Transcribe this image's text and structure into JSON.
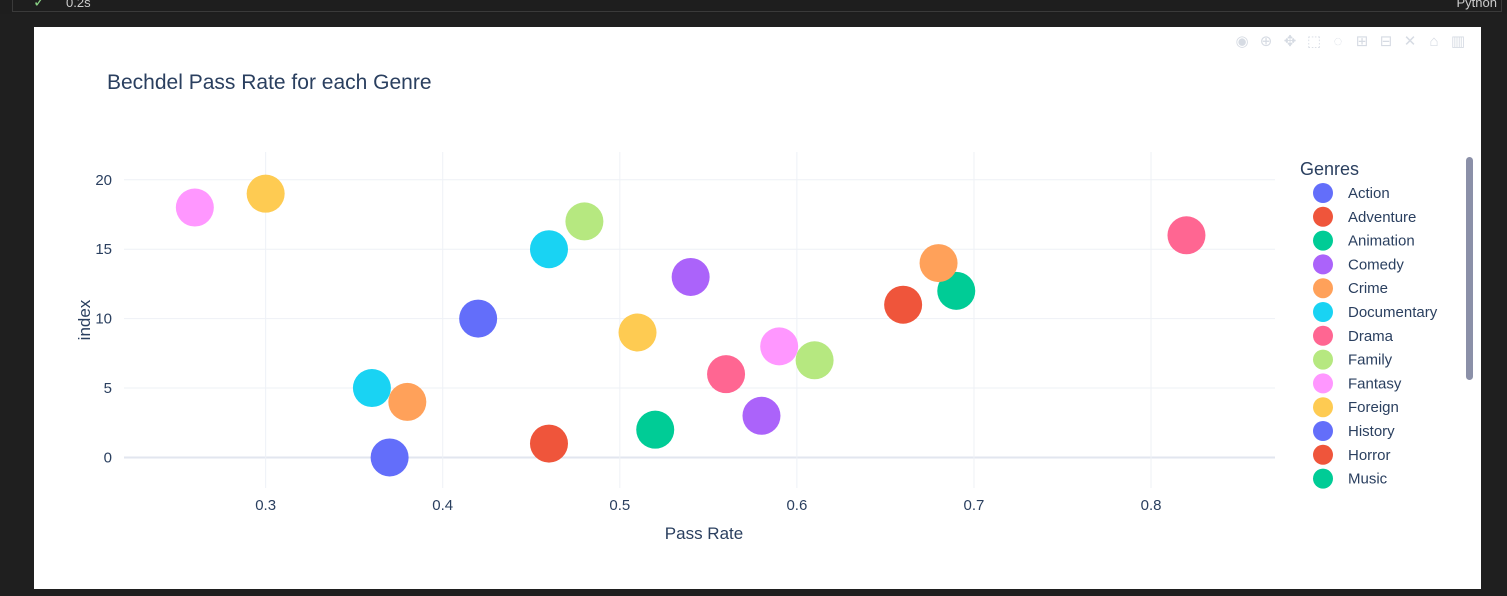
{
  "toolbar": {
    "exec_time": "0.2s",
    "language": "Python"
  },
  "modebar_icons": [
    "camera-icon",
    "zoom-icon",
    "pan-icon",
    "box-select-icon",
    "lasso-icon",
    "zoom-in-icon",
    "zoom-out-icon",
    "autoscale-icon",
    "reset-icon",
    "plotly-logo-icon"
  ],
  "chart_data": {
    "type": "scatter",
    "title": "Bechdel Pass Rate for each Genre",
    "xlabel": "Pass Rate",
    "ylabel": "index",
    "xlim": [
      0.22,
      0.87
    ],
    "ylim": [
      -2.2,
      22
    ],
    "xticks": [
      0.3,
      0.4,
      0.5,
      0.6,
      0.7,
      0.8
    ],
    "yticks": [
      0,
      5,
      10,
      15,
      20
    ],
    "grid": true,
    "legend_title": "Genres",
    "legend_position": "right",
    "series": [
      {
        "name": "Action",
        "color": "#636efa",
        "points": [
          [
            0.37,
            0
          ]
        ]
      },
      {
        "name": "Adventure",
        "color": "#EF553B",
        "points": [
          [
            0.46,
            1
          ]
        ]
      },
      {
        "name": "Animation",
        "color": "#00cc96",
        "points": [
          [
            0.52,
            2
          ]
        ]
      },
      {
        "name": "Comedy",
        "color": "#ab63fa",
        "points": [
          [
            0.58,
            3
          ]
        ]
      },
      {
        "name": "Crime",
        "color": "#FFA15A",
        "points": [
          [
            0.38,
            4
          ]
        ]
      },
      {
        "name": "Documentary",
        "color": "#19d3f3",
        "points": [
          [
            0.36,
            5
          ]
        ]
      },
      {
        "name": "Drama",
        "color": "#FF6692",
        "points": [
          [
            0.56,
            6
          ]
        ]
      },
      {
        "name": "Family",
        "color": "#B6E880",
        "points": [
          [
            0.61,
            7
          ]
        ]
      },
      {
        "name": "Fantasy",
        "color": "#FF97FF",
        "points": [
          [
            0.59,
            8
          ]
        ]
      },
      {
        "name": "Foreign",
        "color": "#FECB52",
        "points": [
          [
            0.51,
            9
          ]
        ]
      },
      {
        "name": "History",
        "color": "#636efa",
        "points": [
          [
            0.42,
            10
          ]
        ]
      },
      {
        "name": "Horror",
        "color": "#EF553B",
        "points": [
          [
            0.66,
            11
          ]
        ]
      },
      {
        "name": "Music",
        "color": "#00cc96",
        "points": [
          [
            0.69,
            12
          ]
        ]
      }
    ],
    "unlisted_points": [
      {
        "color": "#ab63fa",
        "x": 0.54,
        "y": 13
      },
      {
        "color": "#FFA15A",
        "x": 0.68,
        "y": 14
      },
      {
        "color": "#19d3f3",
        "x": 0.46,
        "y": 15
      },
      {
        "color": "#FF6692",
        "x": 0.82,
        "y": 16
      },
      {
        "color": "#B6E880",
        "x": 0.48,
        "y": 17
      },
      {
        "color": "#FF97FF",
        "x": 0.26,
        "y": 18
      },
      {
        "color": "#FECB52",
        "x": 0.3,
        "y": 19
      }
    ]
  }
}
